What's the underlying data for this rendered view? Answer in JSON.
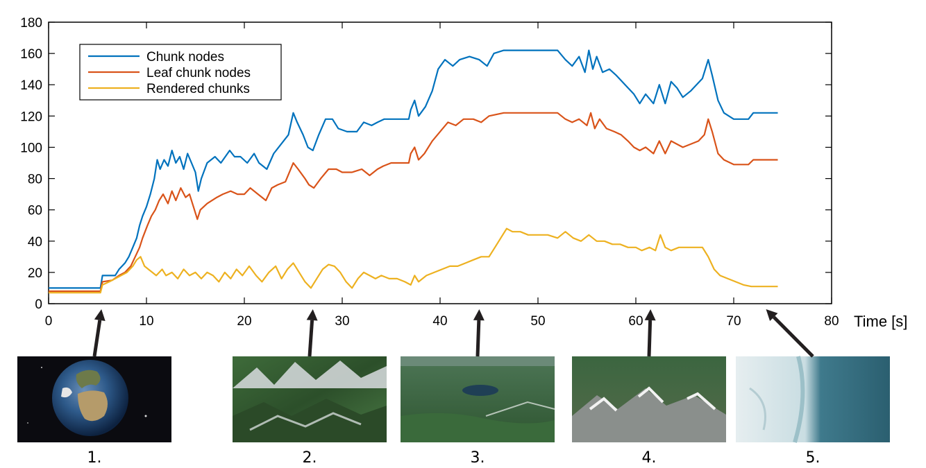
{
  "chart_data": {
    "type": "line",
    "title": "",
    "xlabel": "Time [s]",
    "ylabel": "",
    "xlim": [
      0,
      80
    ],
    "ylim": [
      0,
      180
    ],
    "xticks": [
      0,
      10,
      20,
      30,
      40,
      50,
      60,
      70,
      80
    ],
    "yticks": [
      0,
      20,
      40,
      60,
      80,
      100,
      120,
      140,
      160,
      180
    ],
    "grid": false,
    "legend_position": "top-left",
    "series": [
      {
        "name": "Chunk nodes",
        "color": "#0072BD",
        "points": [
          [
            0,
            10
          ],
          [
            5.3,
            10
          ],
          [
            5.5,
            18
          ],
          [
            6.8,
            18
          ],
          [
            7.2,
            22
          ],
          [
            7.8,
            26
          ],
          [
            8.2,
            30
          ],
          [
            8.6,
            36
          ],
          [
            9.0,
            42
          ],
          [
            9.3,
            50
          ],
          [
            9.6,
            56
          ],
          [
            10.0,
            62
          ],
          [
            10.4,
            70
          ],
          [
            10.8,
            80
          ],
          [
            11.1,
            92
          ],
          [
            11.4,
            86
          ],
          [
            11.8,
            92
          ],
          [
            12.2,
            88
          ],
          [
            12.6,
            98
          ],
          [
            13.0,
            90
          ],
          [
            13.4,
            94
          ],
          [
            13.8,
            86
          ],
          [
            14.2,
            96
          ],
          [
            14.6,
            90
          ],
          [
            15.0,
            84
          ],
          [
            15.3,
            72
          ],
          [
            15.6,
            80
          ],
          [
            16.2,
            90
          ],
          [
            17.0,
            94
          ],
          [
            17.6,
            90
          ],
          [
            18.5,
            98
          ],
          [
            19.0,
            94
          ],
          [
            19.6,
            94
          ],
          [
            20.3,
            90
          ],
          [
            21.0,
            96
          ],
          [
            21.5,
            90
          ],
          [
            22.3,
            86
          ],
          [
            23.0,
            96
          ],
          [
            23.5,
            100
          ],
          [
            24.5,
            108
          ],
          [
            25.0,
            122
          ],
          [
            25.4,
            116
          ],
          [
            26.0,
            108
          ],
          [
            26.5,
            100
          ],
          [
            27.0,
            98
          ],
          [
            27.6,
            108
          ],
          [
            28.3,
            118
          ],
          [
            29.0,
            118
          ],
          [
            29.6,
            112
          ],
          [
            30.5,
            110
          ],
          [
            31.5,
            110
          ],
          [
            32.2,
            116
          ],
          [
            33.0,
            114
          ],
          [
            33.6,
            116
          ],
          [
            34.3,
            118
          ],
          [
            35.0,
            118
          ],
          [
            36.0,
            118
          ],
          [
            36.8,
            118
          ],
          [
            37.0,
            124
          ],
          [
            37.4,
            130
          ],
          [
            37.8,
            120
          ],
          [
            38.5,
            126
          ],
          [
            39.2,
            136
          ],
          [
            39.8,
            150
          ],
          [
            40.5,
            156
          ],
          [
            41.3,
            152
          ],
          [
            42.0,
            156
          ],
          [
            43.0,
            158
          ],
          [
            44.0,
            156
          ],
          [
            44.8,
            152
          ],
          [
            45.5,
            160
          ],
          [
            46.5,
            162
          ],
          [
            48.0,
            162
          ],
          [
            50.0,
            162
          ],
          [
            52.0,
            162
          ],
          [
            52.8,
            156
          ],
          [
            53.5,
            152
          ],
          [
            54.2,
            158
          ],
          [
            54.8,
            148
          ],
          [
            55.2,
            162
          ],
          [
            55.6,
            150
          ],
          [
            56.0,
            158
          ],
          [
            56.6,
            148
          ],
          [
            57.3,
            150
          ],
          [
            58.0,
            146
          ],
          [
            58.6,
            142
          ],
          [
            59.2,
            138
          ],
          [
            59.8,
            134
          ],
          [
            60.4,
            128
          ],
          [
            61.0,
            134
          ],
          [
            61.8,
            128
          ],
          [
            62.4,
            140
          ],
          [
            63.0,
            128
          ],
          [
            63.6,
            142
          ],
          [
            64.2,
            138
          ],
          [
            64.8,
            132
          ],
          [
            65.6,
            136
          ],
          [
            66.2,
            140
          ],
          [
            66.8,
            144
          ],
          [
            67.4,
            156
          ],
          [
            67.8,
            146
          ],
          [
            68.4,
            130
          ],
          [
            69.0,
            122
          ],
          [
            70.0,
            118
          ],
          [
            71.5,
            118
          ],
          [
            72.0,
            122
          ],
          [
            74.5,
            122
          ]
        ]
      },
      {
        "name": "Leaf chunk nodes",
        "color": "#D95319",
        "points": [
          [
            0,
            8
          ],
          [
            5.3,
            8
          ],
          [
            5.5,
            14
          ],
          [
            6.5,
            15
          ],
          [
            7.2,
            18
          ],
          [
            7.8,
            20
          ],
          [
            8.4,
            24
          ],
          [
            9.0,
            32
          ],
          [
            9.3,
            36
          ],
          [
            9.6,
            42
          ],
          [
            10.1,
            50
          ],
          [
            10.5,
            56
          ],
          [
            10.9,
            60
          ],
          [
            11.3,
            66
          ],
          [
            11.7,
            70
          ],
          [
            12.2,
            64
          ],
          [
            12.6,
            72
          ],
          [
            13.0,
            66
          ],
          [
            13.5,
            74
          ],
          [
            14.0,
            68
          ],
          [
            14.4,
            70
          ],
          [
            14.8,
            62
          ],
          [
            15.2,
            54
          ],
          [
            15.5,
            60
          ],
          [
            16.2,
            64
          ],
          [
            17.2,
            68
          ],
          [
            17.8,
            70
          ],
          [
            18.6,
            72
          ],
          [
            19.3,
            70
          ],
          [
            20.0,
            70
          ],
          [
            20.6,
            74
          ],
          [
            21.4,
            70
          ],
          [
            22.2,
            66
          ],
          [
            22.8,
            74
          ],
          [
            23.4,
            76
          ],
          [
            24.2,
            78
          ],
          [
            25.0,
            90
          ],
          [
            25.5,
            86
          ],
          [
            26.2,
            80
          ],
          [
            26.6,
            76
          ],
          [
            27.1,
            74
          ],
          [
            27.8,
            80
          ],
          [
            28.6,
            86
          ],
          [
            29.4,
            86
          ],
          [
            30.0,
            84
          ],
          [
            31.0,
            84
          ],
          [
            32.0,
            86
          ],
          [
            32.8,
            82
          ],
          [
            33.6,
            86
          ],
          [
            34.2,
            88
          ],
          [
            35.0,
            90
          ],
          [
            36.0,
            90
          ],
          [
            36.8,
            90
          ],
          [
            37.0,
            96
          ],
          [
            37.4,
            100
          ],
          [
            37.8,
            92
          ],
          [
            38.4,
            96
          ],
          [
            39.2,
            104
          ],
          [
            40.0,
            110
          ],
          [
            40.8,
            116
          ],
          [
            41.6,
            114
          ],
          [
            42.4,
            118
          ],
          [
            43.4,
            118
          ],
          [
            44.2,
            116
          ],
          [
            45.0,
            120
          ],
          [
            46.5,
            122
          ],
          [
            48.0,
            122
          ],
          [
            50.0,
            122
          ],
          [
            52.0,
            122
          ],
          [
            52.8,
            118
          ],
          [
            53.5,
            116
          ],
          [
            54.2,
            118
          ],
          [
            55.0,
            114
          ],
          [
            55.4,
            122
          ],
          [
            55.8,
            112
          ],
          [
            56.3,
            118
          ],
          [
            57.0,
            112
          ],
          [
            57.8,
            110
          ],
          [
            58.5,
            108
          ],
          [
            59.2,
            104
          ],
          [
            59.8,
            100
          ],
          [
            60.4,
            98
          ],
          [
            61.0,
            100
          ],
          [
            61.8,
            96
          ],
          [
            62.4,
            104
          ],
          [
            63.0,
            96
          ],
          [
            63.6,
            104
          ],
          [
            64.2,
            102
          ],
          [
            64.8,
            100
          ],
          [
            65.6,
            102
          ],
          [
            66.4,
            104
          ],
          [
            67.0,
            108
          ],
          [
            67.4,
            118
          ],
          [
            67.8,
            110
          ],
          [
            68.4,
            96
          ],
          [
            69.0,
            92
          ],
          [
            70.0,
            89
          ],
          [
            71.5,
            89
          ],
          [
            72.0,
            92
          ],
          [
            74.5,
            92
          ]
        ]
      },
      {
        "name": "Rendered chunks",
        "color": "#EDB120",
        "points": [
          [
            0,
            7
          ],
          [
            5.3,
            7
          ],
          [
            5.5,
            12
          ],
          [
            6.2,
            14
          ],
          [
            6.8,
            16
          ],
          [
            7.4,
            18
          ],
          [
            8.0,
            20
          ],
          [
            8.6,
            24
          ],
          [
            9.0,
            28
          ],
          [
            9.4,
            30
          ],
          [
            9.8,
            24
          ],
          [
            10.2,
            22
          ],
          [
            10.6,
            20
          ],
          [
            11.0,
            18
          ],
          [
            11.6,
            22
          ],
          [
            12.0,
            18
          ],
          [
            12.6,
            20
          ],
          [
            13.2,
            16
          ],
          [
            13.8,
            22
          ],
          [
            14.4,
            18
          ],
          [
            15.0,
            20
          ],
          [
            15.6,
            16
          ],
          [
            16.2,
            20
          ],
          [
            16.8,
            18
          ],
          [
            17.4,
            14
          ],
          [
            18.0,
            20
          ],
          [
            18.6,
            16
          ],
          [
            19.2,
            22
          ],
          [
            19.8,
            18
          ],
          [
            20.5,
            24
          ],
          [
            21.2,
            18
          ],
          [
            21.8,
            14
          ],
          [
            22.5,
            20
          ],
          [
            23.2,
            24
          ],
          [
            23.8,
            16
          ],
          [
            24.4,
            22
          ],
          [
            25.0,
            26
          ],
          [
            25.6,
            20
          ],
          [
            26.2,
            14
          ],
          [
            26.8,
            10
          ],
          [
            27.4,
            16
          ],
          [
            28.0,
            22
          ],
          [
            28.6,
            25
          ],
          [
            29.2,
            24
          ],
          [
            29.8,
            20
          ],
          [
            30.4,
            14
          ],
          [
            31.0,
            10
          ],
          [
            31.6,
            16
          ],
          [
            32.2,
            20
          ],
          [
            32.8,
            18
          ],
          [
            33.4,
            16
          ],
          [
            34.0,
            18
          ],
          [
            34.8,
            16
          ],
          [
            35.6,
            16
          ],
          [
            36.4,
            14
          ],
          [
            37.0,
            12
          ],
          [
            37.4,
            18
          ],
          [
            37.8,
            14
          ],
          [
            38.6,
            18
          ],
          [
            39.4,
            20
          ],
          [
            40.2,
            22
          ],
          [
            41.0,
            24
          ],
          [
            41.8,
            24
          ],
          [
            42.6,
            26
          ],
          [
            43.4,
            28
          ],
          [
            44.2,
            30
          ],
          [
            45.0,
            30
          ],
          [
            45.6,
            36
          ],
          [
            46.2,
            42
          ],
          [
            46.8,
            48
          ],
          [
            47.4,
            46
          ],
          [
            48.2,
            46
          ],
          [
            49.0,
            44
          ],
          [
            50.0,
            44
          ],
          [
            51.0,
            44
          ],
          [
            52.0,
            42
          ],
          [
            52.8,
            46
          ],
          [
            53.6,
            42
          ],
          [
            54.4,
            40
          ],
          [
            55.2,
            44
          ],
          [
            56.0,
            40
          ],
          [
            56.8,
            40
          ],
          [
            57.6,
            38
          ],
          [
            58.4,
            38
          ],
          [
            59.2,
            36
          ],
          [
            60.0,
            36
          ],
          [
            60.6,
            34
          ],
          [
            61.4,
            36
          ],
          [
            62.0,
            34
          ],
          [
            62.5,
            44
          ],
          [
            63.0,
            36
          ],
          [
            63.6,
            34
          ],
          [
            64.4,
            36
          ],
          [
            65.2,
            36
          ],
          [
            66.0,
            36
          ],
          [
            66.8,
            36
          ],
          [
            67.4,
            30
          ],
          [
            68.0,
            22
          ],
          [
            68.6,
            18
          ],
          [
            69.4,
            16
          ],
          [
            70.2,
            14
          ],
          [
            71.0,
            12
          ],
          [
            71.8,
            11
          ],
          [
            72.6,
            11
          ],
          [
            74.5,
            11
          ]
        ]
      }
    ],
    "annotations": [
      {
        "label": "1.",
        "x": 5.4
      },
      {
        "label": "2.",
        "x": 27.0
      },
      {
        "label": "3.",
        "x": 44.0
      },
      {
        "label": "4.",
        "x": 61.5
      },
      {
        "label": "5.",
        "x": 73.3
      }
    ]
  }
}
